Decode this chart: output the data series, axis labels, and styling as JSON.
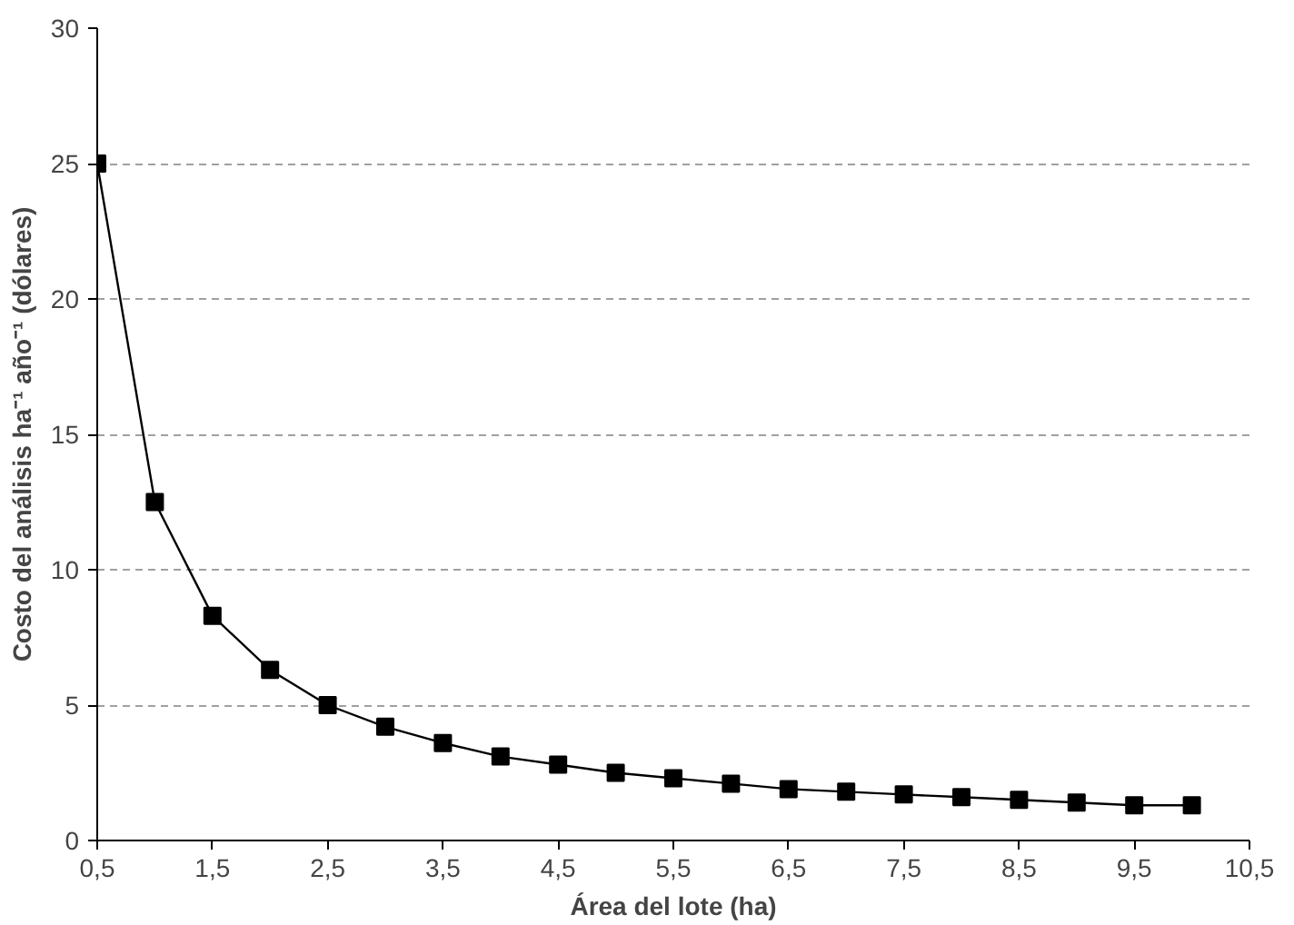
{
  "chart_data": {
    "type": "line",
    "xlabel": "Área del lote (ha)",
    "ylabel": "Costo del análisis ha⁻¹ año⁻¹ (dólares)",
    "x": [
      0.5,
      1,
      1.5,
      2,
      2.5,
      3,
      3.5,
      4,
      4.5,
      5,
      5.5,
      6,
      6.5,
      7,
      7.5,
      8,
      8.5,
      9,
      9.5,
      10
    ],
    "series": [
      {
        "color": "#000000",
        "values": [
          25,
          12.5,
          8.3,
          6.3,
          5,
          4.2,
          3.6,
          3.1,
          2.8,
          2.5,
          2.3,
          2.1,
          1.9,
          1.8,
          1.7,
          1.6,
          1.5,
          1.4,
          1.3,
          1.3
        ]
      }
    ],
    "xlim": [
      0.5,
      10.5
    ],
    "xticks": [
      {
        "value": 0.5,
        "label": "0,5"
      },
      {
        "value": 1.5,
        "label": "1,5"
      },
      {
        "value": 2.5,
        "label": "2,5"
      },
      {
        "value": 3.5,
        "label": "3,5"
      },
      {
        "value": 4.5,
        "label": "4,5"
      },
      {
        "value": 5.5,
        "label": "5,5"
      },
      {
        "value": 6.5,
        "label": "6,5"
      },
      {
        "value": 7.5,
        "label": "7,5"
      },
      {
        "value": 8.5,
        "label": "8,5"
      },
      {
        "value": 9.5,
        "label": "9,5"
      },
      {
        "value": 10.5,
        "label": "10,5"
      }
    ],
    "ylim": [
      0,
      30
    ],
    "yticks": [
      0,
      5,
      10,
      15,
      20,
      25,
      30
    ],
    "grid": "y",
    "marker": "square",
    "line_style": "solid"
  }
}
